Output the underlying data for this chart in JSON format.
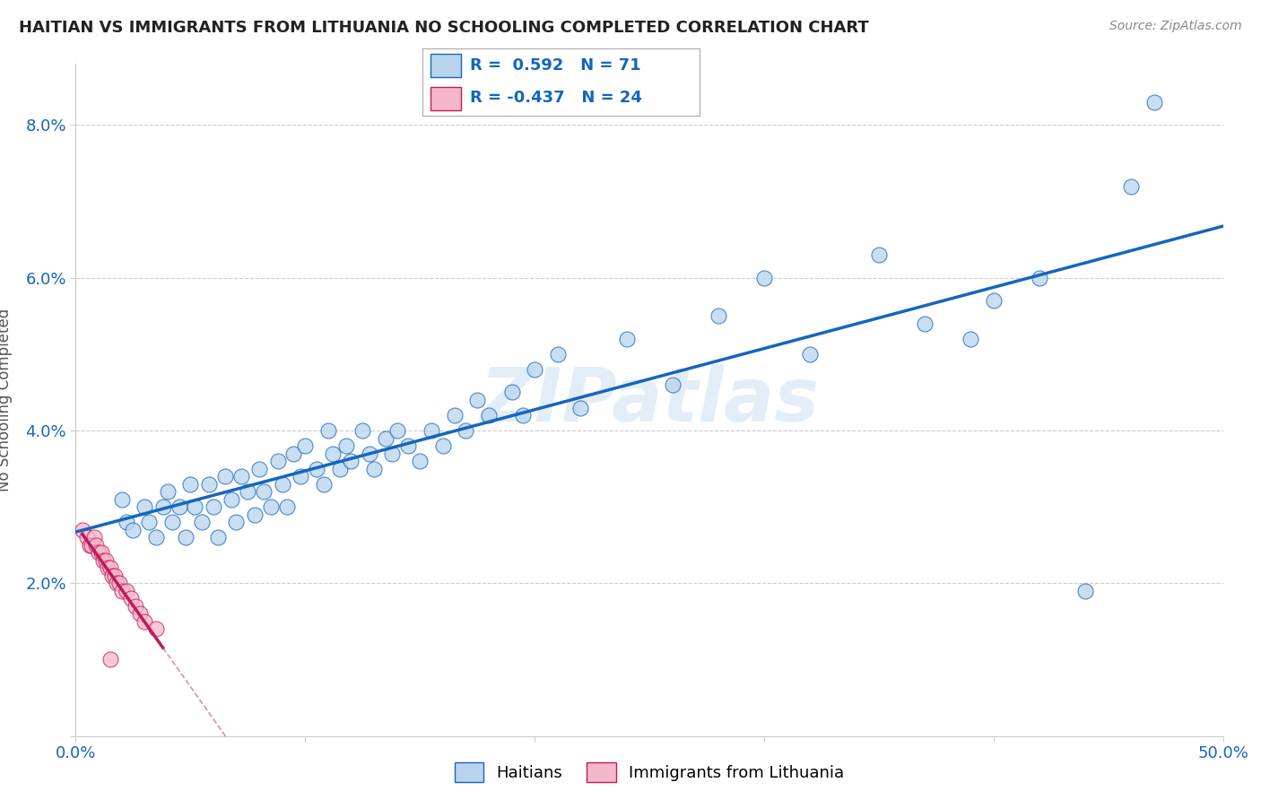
{
  "title": "HAITIAN VS IMMIGRANTS FROM LITHUANIA NO SCHOOLING COMPLETED CORRELATION CHART",
  "source": "Source: ZipAtlas.com",
  "ylabel": "No Schooling Completed",
  "xlim": [
    0.0,
    0.5
  ],
  "ylim": [
    0.0,
    0.088
  ],
  "xticks": [
    0.0,
    0.1,
    0.2,
    0.3,
    0.4,
    0.5
  ],
  "xtick_labels": [
    "0.0%",
    "",
    "",
    "",
    "",
    "50.0%"
  ],
  "yticks": [
    0.0,
    0.02,
    0.04,
    0.06,
    0.08
  ],
  "ytick_labels": [
    "",
    "2.0%",
    "4.0%",
    "6.0%",
    "8.0%"
  ],
  "blue_R": 0.592,
  "blue_N": 71,
  "pink_R": -0.437,
  "pink_N": 24,
  "blue_color": "#b8d4ed",
  "pink_color": "#f5b8ca",
  "blue_line_color": "#1565c0",
  "pink_line_color": "#c2185b",
  "watermark": "ZIPatlas",
  "blue_dots": [
    [
      0.02,
      0.031
    ],
    [
      0.022,
      0.028
    ],
    [
      0.025,
      0.027
    ],
    [
      0.03,
      0.03
    ],
    [
      0.032,
      0.028
    ],
    [
      0.035,
      0.026
    ],
    [
      0.038,
      0.03
    ],
    [
      0.04,
      0.032
    ],
    [
      0.042,
      0.028
    ],
    [
      0.045,
      0.03
    ],
    [
      0.048,
      0.026
    ],
    [
      0.05,
      0.033
    ],
    [
      0.052,
      0.03
    ],
    [
      0.055,
      0.028
    ],
    [
      0.058,
      0.033
    ],
    [
      0.06,
      0.03
    ],
    [
      0.062,
      0.026
    ],
    [
      0.065,
      0.034
    ],
    [
      0.068,
      0.031
    ],
    [
      0.07,
      0.028
    ],
    [
      0.072,
      0.034
    ],
    [
      0.075,
      0.032
    ],
    [
      0.078,
      0.029
    ],
    [
      0.08,
      0.035
    ],
    [
      0.082,
      0.032
    ],
    [
      0.085,
      0.03
    ],
    [
      0.088,
      0.036
    ],
    [
      0.09,
      0.033
    ],
    [
      0.092,
      0.03
    ],
    [
      0.095,
      0.037
    ],
    [
      0.098,
      0.034
    ],
    [
      0.1,
      0.038
    ],
    [
      0.105,
      0.035
    ],
    [
      0.108,
      0.033
    ],
    [
      0.11,
      0.04
    ],
    [
      0.112,
      0.037
    ],
    [
      0.115,
      0.035
    ],
    [
      0.118,
      0.038
    ],
    [
      0.12,
      0.036
    ],
    [
      0.125,
      0.04
    ],
    [
      0.128,
      0.037
    ],
    [
      0.13,
      0.035
    ],
    [
      0.135,
      0.039
    ],
    [
      0.138,
      0.037
    ],
    [
      0.14,
      0.04
    ],
    [
      0.145,
      0.038
    ],
    [
      0.15,
      0.036
    ],
    [
      0.155,
      0.04
    ],
    [
      0.16,
      0.038
    ],
    [
      0.165,
      0.042
    ],
    [
      0.17,
      0.04
    ],
    [
      0.175,
      0.044
    ],
    [
      0.18,
      0.042
    ],
    [
      0.19,
      0.045
    ],
    [
      0.195,
      0.042
    ],
    [
      0.2,
      0.048
    ],
    [
      0.21,
      0.05
    ],
    [
      0.22,
      0.043
    ],
    [
      0.24,
      0.052
    ],
    [
      0.26,
      0.046
    ],
    [
      0.28,
      0.055
    ],
    [
      0.3,
      0.06
    ],
    [
      0.32,
      0.05
    ],
    [
      0.35,
      0.063
    ],
    [
      0.37,
      0.054
    ],
    [
      0.39,
      0.052
    ],
    [
      0.4,
      0.057
    ],
    [
      0.42,
      0.06
    ],
    [
      0.44,
      0.019
    ],
    [
      0.46,
      0.072
    ],
    [
      0.47,
      0.083
    ]
  ],
  "pink_dots": [
    [
      0.003,
      0.027
    ],
    [
      0.005,
      0.026
    ],
    [
      0.006,
      0.025
    ],
    [
      0.007,
      0.025
    ],
    [
      0.008,
      0.026
    ],
    [
      0.009,
      0.025
    ],
    [
      0.01,
      0.024
    ],
    [
      0.011,
      0.024
    ],
    [
      0.012,
      0.023
    ],
    [
      0.013,
      0.023
    ],
    [
      0.014,
      0.022
    ],
    [
      0.015,
      0.022
    ],
    [
      0.016,
      0.021
    ],
    [
      0.017,
      0.021
    ],
    [
      0.018,
      0.02
    ],
    [
      0.019,
      0.02
    ],
    [
      0.02,
      0.019
    ],
    [
      0.022,
      0.019
    ],
    [
      0.024,
      0.018
    ],
    [
      0.026,
      0.017
    ],
    [
      0.028,
      0.016
    ],
    [
      0.03,
      0.015
    ],
    [
      0.035,
      0.014
    ],
    [
      0.015,
      0.01
    ]
  ],
  "pink_line_x_start": 0.003,
  "pink_line_x_solid_end": 0.038,
  "pink_line_x_dashed_end": 0.15
}
